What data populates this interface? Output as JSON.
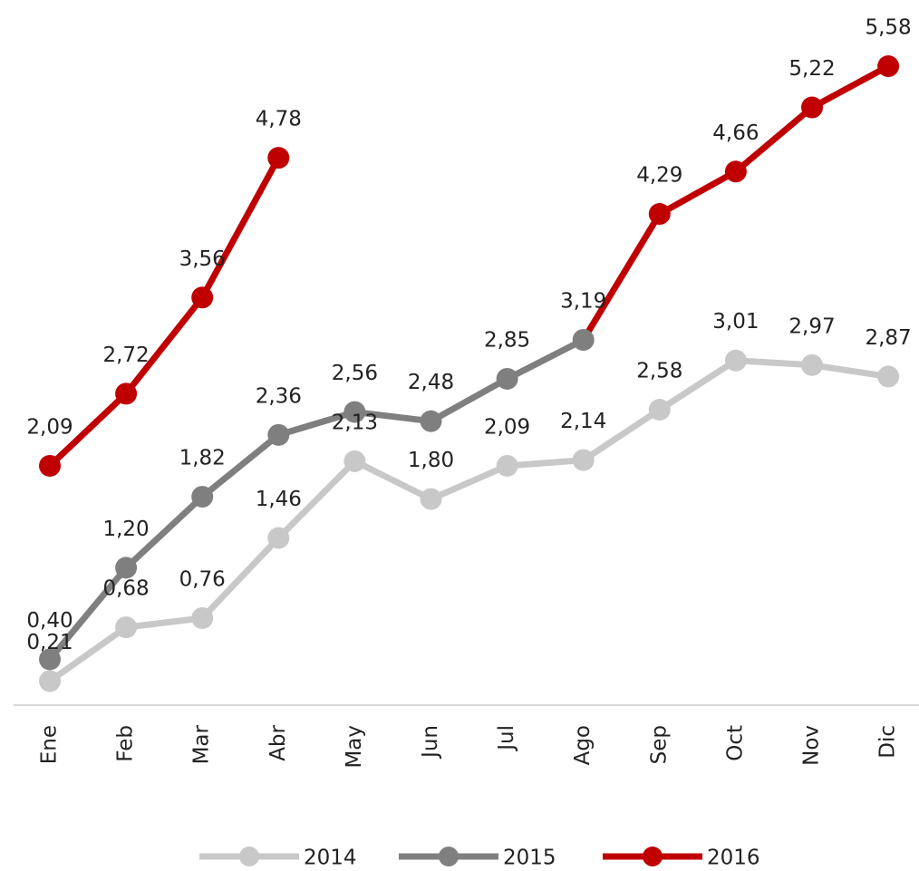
{
  "chart_data": {
    "type": "line",
    "categories": [
      "Ene",
      "Feb",
      "Mar",
      "Abr",
      "May",
      "Jun",
      "Jul",
      "Ago",
      "Sep",
      "Oct",
      "Nov",
      "Dic"
    ],
    "series": [
      {
        "name": "2014",
        "color": "#c8c8c8",
        "values": [
          0.21,
          0.68,
          0.76,
          1.46,
          2.13,
          1.8,
          2.09,
          2.14,
          2.58,
          3.01,
          2.97,
          2.87
        ],
        "value_labels": [
          "0,21",
          "0,68",
          "0,76",
          "1,46",
          "2,13",
          "1,80",
          "2,09",
          "2,14",
          "2,58",
          "3,01",
          "2,97",
          "2,87"
        ]
      },
      {
        "name": "2015",
        "color": "#7f7f7f",
        "values": [
          0.4,
          1.2,
          1.82,
          2.36,
          2.56,
          2.48,
          2.85,
          3.19,
          4.29,
          4.66,
          5.22,
          5.58
        ],
        "value_labels": [
          "0,40",
          "1,20",
          "1,82",
          "2,36",
          "2,56",
          "2,48",
          "2,85",
          "3,19",
          "4,29",
          "4,66",
          "5,22",
          "5,58"
        ],
        "point_colors": [
          "#7f7f7f",
          "#7f7f7f",
          "#7f7f7f",
          "#7f7f7f",
          "#7f7f7f",
          "#7f7f7f",
          "#7f7f7f",
          "#7f7f7f",
          "#c00000",
          "#c00000",
          "#c00000",
          "#c00000"
        ]
      },
      {
        "name": "2016",
        "color": "#c00000",
        "values": [
          2.09,
          2.72,
          3.56,
          4.78,
          null,
          null,
          null,
          null,
          null,
          null,
          null,
          null
        ],
        "value_labels": [
          "2,09",
          "2,72",
          "3,56",
          "4,78",
          null,
          null,
          null,
          null,
          null,
          null,
          null,
          null
        ]
      }
    ],
    "ylim": [
      0,
      6
    ],
    "grid": false,
    "legend": "bottom"
  }
}
